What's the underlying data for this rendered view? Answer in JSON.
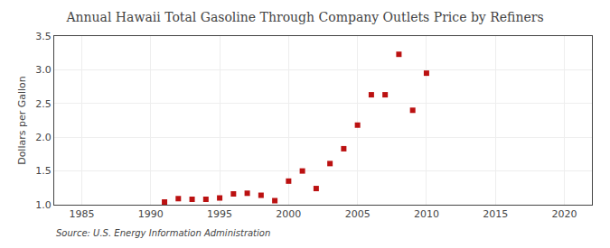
{
  "chart_data": {
    "type": "scatter",
    "title": "Annual Hawaii Total Gasoline Through Company Outlets Price by Refiners",
    "ylabel": "Dollars per Gallon",
    "source": "Source: U.S. Energy Information Administration",
    "x": [
      1991,
      1992,
      1993,
      1994,
      1995,
      1996,
      1997,
      1998,
      1999,
      2000,
      2001,
      2002,
      2003,
      2004,
      2005,
      2006,
      2007,
      2008,
      2009,
      2010
    ],
    "values": [
      1.04,
      1.09,
      1.08,
      1.08,
      1.1,
      1.16,
      1.17,
      1.14,
      1.06,
      1.35,
      1.5,
      1.24,
      1.61,
      1.83,
      2.18,
      2.63,
      2.63,
      3.23,
      2.4,
      2.95
    ],
    "color": "#bb1111",
    "marker": "square",
    "xlim": [
      1983,
      2022
    ],
    "ylim": [
      1.0,
      3.5
    ],
    "xticks": [
      1985,
      1990,
      1995,
      2000,
      2005,
      2010,
      2015,
      2020
    ],
    "yticks": [
      {
        "value": 1.0,
        "label": "1.0"
      },
      1.5,
      {
        "value": 2.0,
        "label": "2.0"
      },
      2.5,
      {
        "value": 3.0,
        "label": "3.0"
      },
      3.5
    ],
    "grid": true
  }
}
